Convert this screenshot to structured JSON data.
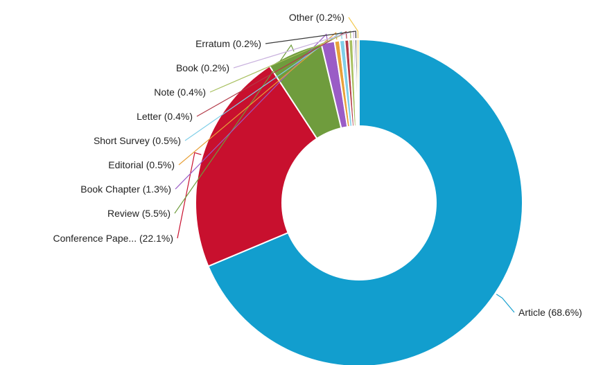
{
  "chart_data": {
    "type": "pie",
    "donut": true,
    "start_angle_deg": 0,
    "direction": "clockwise",
    "legend": "none",
    "slices": [
      {
        "name": "Article",
        "value": 68.6,
        "label": "Article (68.6%)",
        "color": "#129ece"
      },
      {
        "name": "Conference Paper",
        "value": 22.1,
        "label": "Conference Pape... (22.1%)",
        "color": "#c8102e"
      },
      {
        "name": "Review",
        "value": 5.5,
        "label": "Review (5.5%)",
        "color": "#6f9c3d"
      },
      {
        "name": "Book Chapter",
        "value": 1.3,
        "label": "Book Chapter (1.3%)",
        "color": "#9a5cc6"
      },
      {
        "name": "Editorial",
        "value": 0.5,
        "label": "Editorial (0.5%)",
        "color": "#e8a13a"
      },
      {
        "name": "Short Survey",
        "value": 0.5,
        "label": "Short Survey (0.5%)",
        "color": "#7fcfe8"
      },
      {
        "name": "Letter",
        "value": 0.4,
        "label": "Letter (0.4%)",
        "color": "#b23a48"
      },
      {
        "name": "Note",
        "value": 0.4,
        "label": "Note (0.4%)",
        "color": "#a8c060"
      },
      {
        "name": "Book",
        "value": 0.2,
        "label": "Book (0.2%)",
        "color": "#c9b2de"
      },
      {
        "name": "Erratum",
        "value": 0.2,
        "label": "Erratum (0.2%)",
        "color": "#3a3a3a"
      },
      {
        "name": "Other",
        "value": 0.2,
        "label": "Other (0.2%)",
        "color": "#f2c84b"
      }
    ]
  }
}
